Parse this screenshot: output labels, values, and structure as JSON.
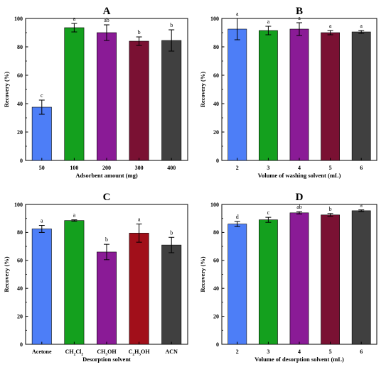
{
  "chart_data": [
    {
      "type": "bar",
      "panel_label": "A",
      "xlabel": "Adsorbent amount (mg)",
      "ylabel": "Recovery (%)",
      "ylim": [
        0,
        100
      ],
      "yticks": [
        "0",
        "20",
        "40",
        "60",
        "80",
        "100"
      ],
      "categories": [
        "50",
        "100",
        "200",
        "300",
        "400"
      ],
      "values": [
        37.5,
        93.5,
        90,
        84,
        84.5
      ],
      "errors": [
        5,
        3,
        5.5,
        3,
        7.5
      ],
      "significance": [
        "c",
        "a",
        "ab",
        "b",
        "b"
      ],
      "colors": [
        "#4d7ef7",
        "#14a01e",
        "#8a1b96",
        "#7a1133",
        "#404040"
      ]
    },
    {
      "type": "bar",
      "panel_label": "B",
      "xlabel": "Volume of washing solvent (mL)",
      "ylabel": "Recovery (%)",
      "ylim": [
        0,
        100
      ],
      "yticks": [
        "0",
        "20",
        "40",
        "60",
        "80",
        "100"
      ],
      "categories": [
        "2",
        "3",
        "4",
        "5",
        "6"
      ],
      "values": [
        92.5,
        91.5,
        92.5,
        90,
        90.5
      ],
      "errors": [
        7.5,
        3,
        4.5,
        1.5,
        1
      ],
      "significance": [
        "a",
        "a",
        "a",
        "a",
        "a"
      ],
      "colors": [
        "#4d7ef7",
        "#14a01e",
        "#8a1b96",
        "#7a1133",
        "#404040"
      ]
    },
    {
      "type": "bar",
      "panel_label": "C",
      "xlabel": "Desorption solvent",
      "ylabel": "Recovery (%)",
      "ylim": [
        0,
        100
      ],
      "yticks": [
        "0",
        "20",
        "40",
        "60",
        "80",
        "100"
      ],
      "categories": [
        {
          "base": "Acetone"
        },
        {
          "base": "CH",
          "sub1": "2",
          "mid": "Cl",
          "sub2": "2"
        },
        {
          "base": "CH",
          "sub1": "3",
          "mid": "OH"
        },
        {
          "base": "C",
          "sub1": "2",
          "mid": "H",
          "sub2": "5",
          "tail": "OH"
        },
        {
          "base": "ACN"
        }
      ],
      "values": [
        82.5,
        88.5,
        66,
        79.5,
        71
      ],
      "errors": [
        2.5,
        0.5,
        5.5,
        6.5,
        5.5
      ],
      "significance": [
        "a",
        "a",
        "b",
        "a",
        "b"
      ],
      "colors": [
        "#4d7ef7",
        "#14a01e",
        "#8a1b96",
        "#a10f1a",
        "#404040"
      ]
    },
    {
      "type": "bar",
      "panel_label": "D",
      "xlabel": "Volume of desorption solvent (mL)",
      "ylabel": "Recovery (%)",
      "ylim": [
        0,
        100
      ],
      "yticks": [
        "0",
        "20",
        "40",
        "60",
        "80",
        "100"
      ],
      "categories": [
        "2",
        "3",
        "4",
        "5",
        "6"
      ],
      "values": [
        86,
        89,
        94,
        92.5,
        95.5
      ],
      "errors": [
        1.8,
        1.8,
        0.8,
        1,
        0.6
      ],
      "significance": [
        "d",
        "c",
        "ab",
        "b",
        "a"
      ],
      "colors": [
        "#4d7ef7",
        "#14a01e",
        "#8a1b96",
        "#7a1133",
        "#404040"
      ]
    }
  ]
}
